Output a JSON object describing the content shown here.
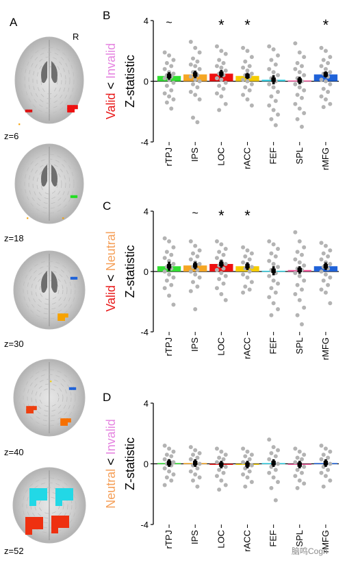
{
  "figure": {
    "panel_a": {
      "letter": "A",
      "orientation_label": "R",
      "slices": [
        {
          "label": "z=6",
          "blobs": [
            {
              "color": "#dd1111",
              "shape": "small"
            },
            {
              "color": "#ee1010",
              "shape": "cluster"
            },
            {
              "color": "#f5a000",
              "shape": "speck"
            }
          ]
        },
        {
          "label": "z=18",
          "blobs": [
            {
              "color": "#22dd22",
              "shape": "small"
            },
            {
              "color": "#f5a000",
              "shape": "speck"
            },
            {
              "color": "#f5a000",
              "shape": "speck"
            }
          ]
        },
        {
          "label": "z=30",
          "blobs": [
            {
              "color": "#1f62d8",
              "shape": "small"
            },
            {
              "color": "#f7a200",
              "shape": "cluster"
            }
          ]
        },
        {
          "label": "z=40",
          "blobs": [
            {
              "color": "#f5d000",
              "shape": "speck"
            },
            {
              "color": "#1f62d8",
              "shape": "small"
            },
            {
              "color": "#ee4010",
              "shape": "cluster"
            },
            {
              "color": "#f77000",
              "shape": "cluster"
            }
          ]
        },
        {
          "label": "z=52",
          "blobs": [
            {
              "color": "#22d8e6",
              "shape": "large"
            },
            {
              "color": "#22d8e6",
              "shape": "large"
            },
            {
              "color": "#ee3010",
              "shape": "large"
            },
            {
              "color": "#ee3010",
              "shape": "large"
            }
          ]
        }
      ]
    },
    "categories": [
      "rTPJ",
      "IPS",
      "LOC",
      "rACC",
      "FEF",
      "SPL",
      "rMFG"
    ],
    "roi_colors": [
      "#33e033",
      "#f5a623",
      "#ee1111",
      "#f5cc00",
      "#33d1e6",
      "#ee5599",
      "#1f62d8"
    ],
    "watermark": "脑鸣Cogn"
  },
  "chart_data": [
    {
      "type": "bar",
      "panel": "B",
      "ylabel_parts": [
        {
          "text": "Valid",
          "color": "#e8191a"
        },
        {
          "text": " < ",
          "color": "#000000"
        },
        {
          "text": "Invalid",
          "color": "#e585e0"
        }
      ],
      "ylabel_secondary": "Z-statistic",
      "ylim": [
        -4,
        4
      ],
      "yticks": [
        "4",
        "0",
        "-4"
      ],
      "categories": [
        "rTPJ",
        "IPS",
        "LOC",
        "rACC",
        "FEF",
        "SPL",
        "rMFG"
      ],
      "values": [
        0.35,
        0.45,
        0.5,
        0.35,
        0.1,
        0.05,
        0.45
      ],
      "errors": [
        0.25,
        0.25,
        0.25,
        0.2,
        0.3,
        0.25,
        0.2
      ],
      "significance": [
        "~",
        "",
        "*",
        "*",
        "",
        "",
        "*"
      ],
      "points": [
        [
          1.9,
          1.7,
          1.4,
          1.2,
          1.0,
          0.8,
          0.6,
          0.5,
          0.4,
          0.3,
          0.2,
          0.1,
          -0.1,
          -0.3,
          -0.6,
          -0.8,
          -1.0,
          -1.2,
          -1.4,
          -1.8
        ],
        [
          2.6,
          2.2,
          1.9,
          1.5,
          1.3,
          1.1,
          1.0,
          0.8,
          0.6,
          0.4,
          0.3,
          0.1,
          0.0,
          -0.2,
          -0.4,
          -0.7,
          -0.9,
          -1.2,
          -2.4,
          -2.7
        ],
        [
          2.3,
          2.0,
          1.8,
          1.4,
          1.2,
          1.0,
          0.9,
          0.7,
          0.5,
          0.4,
          0.2,
          0.1,
          -0.1,
          -0.3,
          -0.5,
          -0.8,
          -1.0,
          -1.5,
          -1.9
        ],
        [
          2.2,
          2.0,
          1.6,
          1.3,
          1.0,
          0.9,
          0.7,
          0.5,
          0.4,
          0.3,
          0.1,
          0.0,
          -0.2,
          -0.4,
          -0.6,
          -0.9,
          -1.2,
          -1.6
        ],
        [
          2.3,
          2.1,
          1.7,
          1.4,
          1.1,
          0.8,
          0.6,
          0.4,
          0.2,
          0.0,
          -0.2,
          -0.4,
          -0.7,
          -1.0,
          -1.3,
          -1.6,
          -1.9,
          -2.2,
          -2.5,
          -2.9
        ],
        [
          2.5,
          1.9,
          1.6,
          1.2,
          1.0,
          0.8,
          0.6,
          0.4,
          0.2,
          0.0,
          -0.2,
          -0.4,
          -0.6,
          -0.9,
          -1.1,
          -1.5,
          -1.8,
          -2.1,
          -2.5,
          -3.0
        ],
        [
          2.2,
          2.0,
          1.6,
          1.4,
          1.2,
          1.0,
          0.8,
          0.6,
          0.5,
          0.3,
          0.1,
          0.0,
          -0.2,
          -0.5,
          -0.7,
          -1.0,
          -1.2,
          -1.5,
          -1.7
        ]
      ]
    },
    {
      "type": "bar",
      "panel": "C",
      "ylabel_parts": [
        {
          "text": "Valid",
          "color": "#e8191a"
        },
        {
          "text": " < ",
          "color": "#000000"
        },
        {
          "text": "Neutral",
          "color": "#f5a05a"
        }
      ],
      "ylabel_secondary": "Z-statistic",
      "ylim": [
        -4,
        4
      ],
      "yticks": [
        "4",
        "0",
        "-4"
      ],
      "categories": [
        "rTPJ",
        "IPS",
        "LOC",
        "rACC",
        "FEF",
        "SPL",
        "rMFG"
      ],
      "values": [
        0.35,
        0.4,
        0.5,
        0.35,
        0.05,
        0.1,
        0.35
      ],
      "errors": [
        0.3,
        0.25,
        0.25,
        0.25,
        0.3,
        0.25,
        0.25
      ],
      "significance": [
        "",
        "~",
        "*",
        "*",
        "",
        "",
        ""
      ],
      "points": [
        [
          2.2,
          2.0,
          1.6,
          1.3,
          1.1,
          0.9,
          0.7,
          0.5,
          0.3,
          0.2,
          0.0,
          -0.2,
          -0.4,
          -0.6,
          -0.9,
          -1.1,
          -1.6,
          -2.2
        ],
        [
          2.0,
          1.7,
          1.4,
          1.2,
          1.0,
          0.8,
          0.6,
          0.5,
          0.3,
          0.1,
          0.0,
          -0.2,
          -0.4,
          -0.7,
          -1.0,
          -1.3,
          -2.5
        ],
        [
          2.0,
          1.8,
          1.5,
          1.3,
          1.1,
          0.9,
          0.7,
          0.5,
          0.4,
          0.2,
          0.1,
          -0.1,
          -0.3,
          -0.5,
          -0.8,
          -1.1,
          -1.5,
          -1.9
        ],
        [
          1.6,
          1.4,
          1.2,
          1.0,
          0.8,
          0.6,
          0.5,
          0.3,
          0.2,
          0.0,
          -0.2,
          -0.4,
          -0.7,
          -1.0,
          -1.2,
          -1.4
        ],
        [
          2.0,
          1.8,
          1.5,
          1.2,
          1.0,
          0.7,
          0.5,
          0.3,
          0.1,
          -0.1,
          -0.3,
          -0.6,
          -0.8,
          -1.1,
          -1.4,
          -1.7,
          -2.1,
          -2.5,
          -2.9
        ],
        [
          2.6,
          2.0,
          1.6,
          1.3,
          1.1,
          0.8,
          0.6,
          0.4,
          0.2,
          0.1,
          -0.1,
          -0.3,
          -0.6,
          -0.9,
          -1.2,
          -1.5,
          -1.9,
          -2.4,
          -2.9,
          -3.5
        ],
        [
          1.9,
          1.7,
          1.4,
          1.2,
          1.0,
          0.8,
          0.6,
          0.5,
          0.3,
          0.2,
          0.0,
          -0.2,
          -0.4,
          -0.6,
          -0.9,
          -1.2,
          -1.4,
          -2.1
        ]
      ]
    },
    {
      "type": "bar",
      "panel": "D",
      "ylabel_parts": [
        {
          "text": "Neutral",
          "color": "#f5a05a"
        },
        {
          "text": " < ",
          "color": "#000000"
        },
        {
          "text": "Invalid",
          "color": "#e585e0"
        }
      ],
      "ylabel_secondary": "Z-statistic",
      "ylim": [
        -4,
        4
      ],
      "yticks": [
        "4",
        "0",
        "-4"
      ],
      "categories": [
        "rTPJ",
        "IPS",
        "LOC",
        "rACC",
        "FEF",
        "SPL",
        "rMFG"
      ],
      "values": [
        0.05,
        0.05,
        -0.05,
        -0.05,
        0.05,
        -0.05,
        0.05
      ],
      "errors": [
        0.25,
        0.25,
        0.25,
        0.25,
        0.25,
        0.25,
        0.25
      ],
      "significance": [
        "",
        "",
        "",
        "",
        "",
        "",
        ""
      ],
      "points": [
        [
          1.2,
          1.0,
          0.8,
          0.6,
          0.5,
          0.3,
          0.2,
          0.1,
          0.0,
          -0.1,
          -0.3,
          -0.5,
          -0.7,
          -0.9,
          -1.1,
          -1.4
        ],
        [
          1.1,
          0.9,
          0.7,
          0.6,
          0.4,
          0.3,
          0.1,
          0.0,
          -0.1,
          -0.3,
          -0.5,
          -0.7,
          -0.9,
          -1.1,
          -1.5
        ],
        [
          1.0,
          0.8,
          0.6,
          0.4,
          0.3,
          0.1,
          0.0,
          -0.2,
          -0.4,
          -0.6,
          -0.8,
          -1.1,
          -1.4,
          -1.7
        ],
        [
          1.0,
          0.8,
          0.6,
          0.5,
          0.3,
          0.1,
          0.0,
          -0.1,
          -0.3,
          -0.5,
          -0.7,
          -0.9,
          -1.2,
          -1.5
        ],
        [
          1.6,
          1.1,
          0.9,
          0.7,
          0.5,
          0.3,
          0.1,
          0.0,
          -0.2,
          -0.4,
          -0.6,
          -0.9,
          -1.2,
          -1.6,
          -2.4
        ],
        [
          1.0,
          0.8,
          0.6,
          0.4,
          0.3,
          0.1,
          0.0,
          -0.2,
          -0.4,
          -0.6,
          -0.8,
          -1.1,
          -1.3,
          -1.6
        ],
        [
          1.2,
          1.0,
          0.8,
          0.6,
          0.4,
          0.3,
          0.1,
          0.0,
          -0.2,
          -0.4,
          -0.6,
          -0.8,
          -1.1,
          -1.5
        ]
      ]
    }
  ]
}
